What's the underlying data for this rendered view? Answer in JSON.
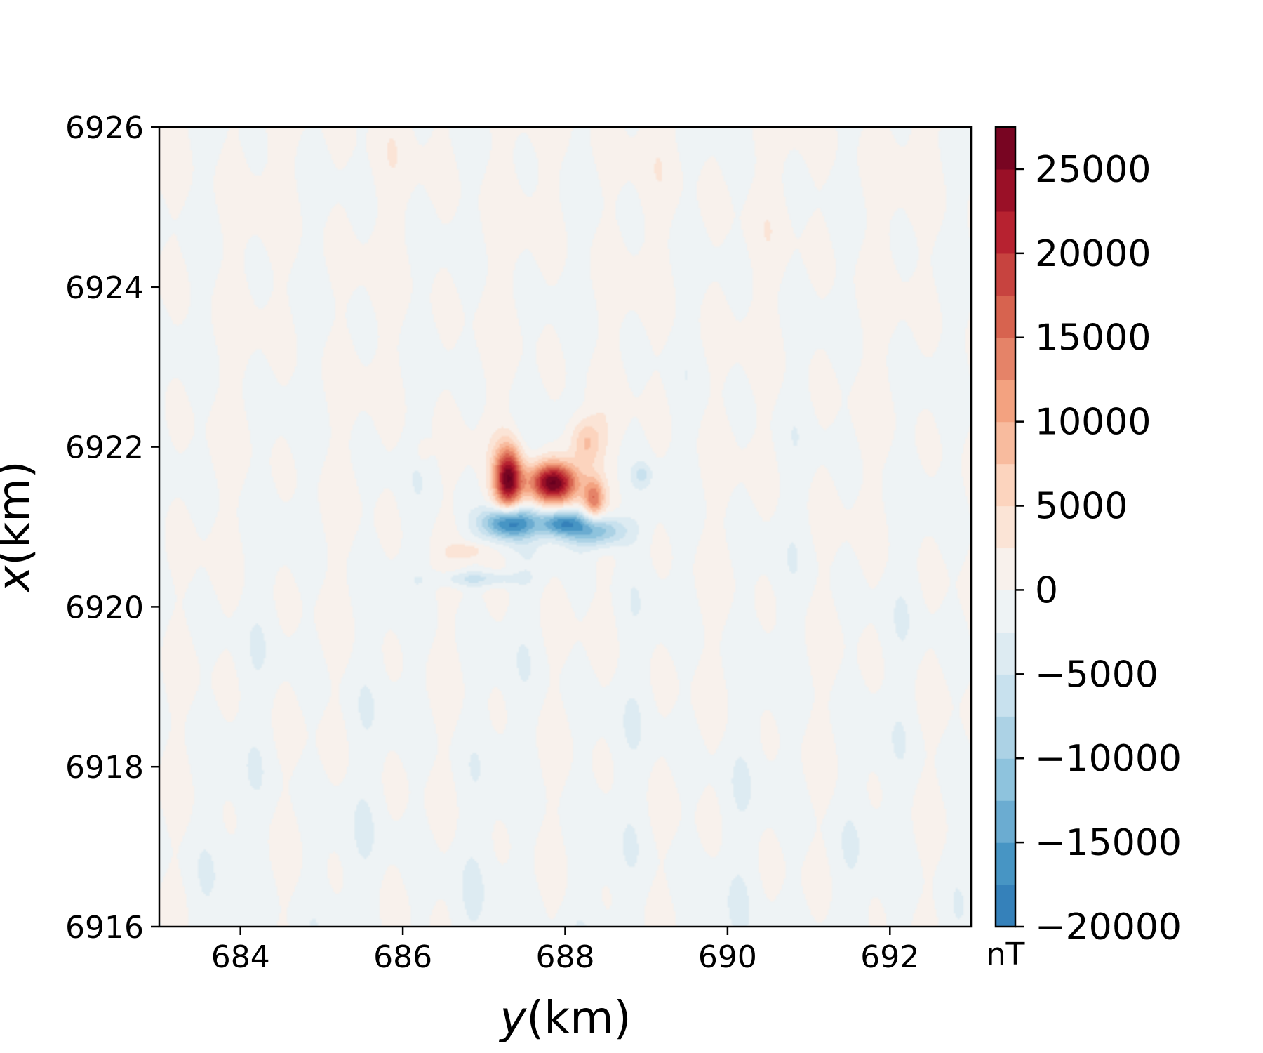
{
  "chart_data": {
    "type": "heatmap",
    "title": "",
    "xlabel_var": "y",
    "xlabel_unit": "(km)",
    "ylabel_var": "x",
    "ylabel_unit": "(km)",
    "xlim": [
      683,
      693
    ],
    "ylim": [
      6916,
      6926
    ],
    "x_ticks": [
      "684",
      "686",
      "688",
      "690",
      "692"
    ],
    "y_ticks": [
      "6916",
      "6918",
      "6920",
      "6922",
      "6924",
      "6926"
    ],
    "x_tick_values": [
      684,
      686,
      688,
      690,
      692
    ],
    "y_tick_values": [
      6916,
      6918,
      6920,
      6922,
      6924,
      6926
    ],
    "colorbar": {
      "unit": "nT",
      "range": [
        -20000,
        27500
      ],
      "tick_values": [
        -20000,
        -15000,
        -10000,
        -5000,
        0,
        5000,
        10000,
        15000,
        20000,
        25000
      ],
      "tick_labels": [
        "−20000",
        "−15000",
        "−10000",
        "−5000",
        "0",
        "5000",
        "10000",
        "15000",
        "20000",
        "25000"
      ],
      "level_step": 2500,
      "colormap": "RdBu_r"
    },
    "anomalies": [
      {
        "y": 687.3,
        "x": 6921.6,
        "value": 26000,
        "sy": 0.12,
        "sx": 0.28
      },
      {
        "y": 687.85,
        "x": 6921.55,
        "value": 27000,
        "sy": 0.22,
        "sx": 0.18
      },
      {
        "y": 688.25,
        "x": 6922.05,
        "value": 9000,
        "sy": 0.14,
        "sx": 0.22
      },
      {
        "y": 688.35,
        "x": 6921.35,
        "value": 13000,
        "sy": 0.09,
        "sx": 0.18
      },
      {
        "y": 687.3,
        "x": 6921.05,
        "value": -20000,
        "sy": 0.22,
        "sx": 0.14
      },
      {
        "y": 687.95,
        "x": 6921.05,
        "value": -16000,
        "sy": 0.2,
        "sx": 0.12
      },
      {
        "y": 688.4,
        "x": 6920.95,
        "value": -13000,
        "sy": 0.25,
        "sx": 0.14
      },
      {
        "y": 686.9,
        "x": 6920.35,
        "value": -6000,
        "sy": 0.35,
        "sx": 0.07
      },
      {
        "y": 686.8,
        "x": 6920.7,
        "value": 4500,
        "sy": 0.15,
        "sx": 0.07
      },
      {
        "y": 686.25,
        "x": 6921.95,
        "value": 3500,
        "sy": 0.06,
        "sx": 0.1
      },
      {
        "y": 688.95,
        "x": 6921.65,
        "value": -4500,
        "sy": 0.08,
        "sx": 0.1
      }
    ]
  }
}
